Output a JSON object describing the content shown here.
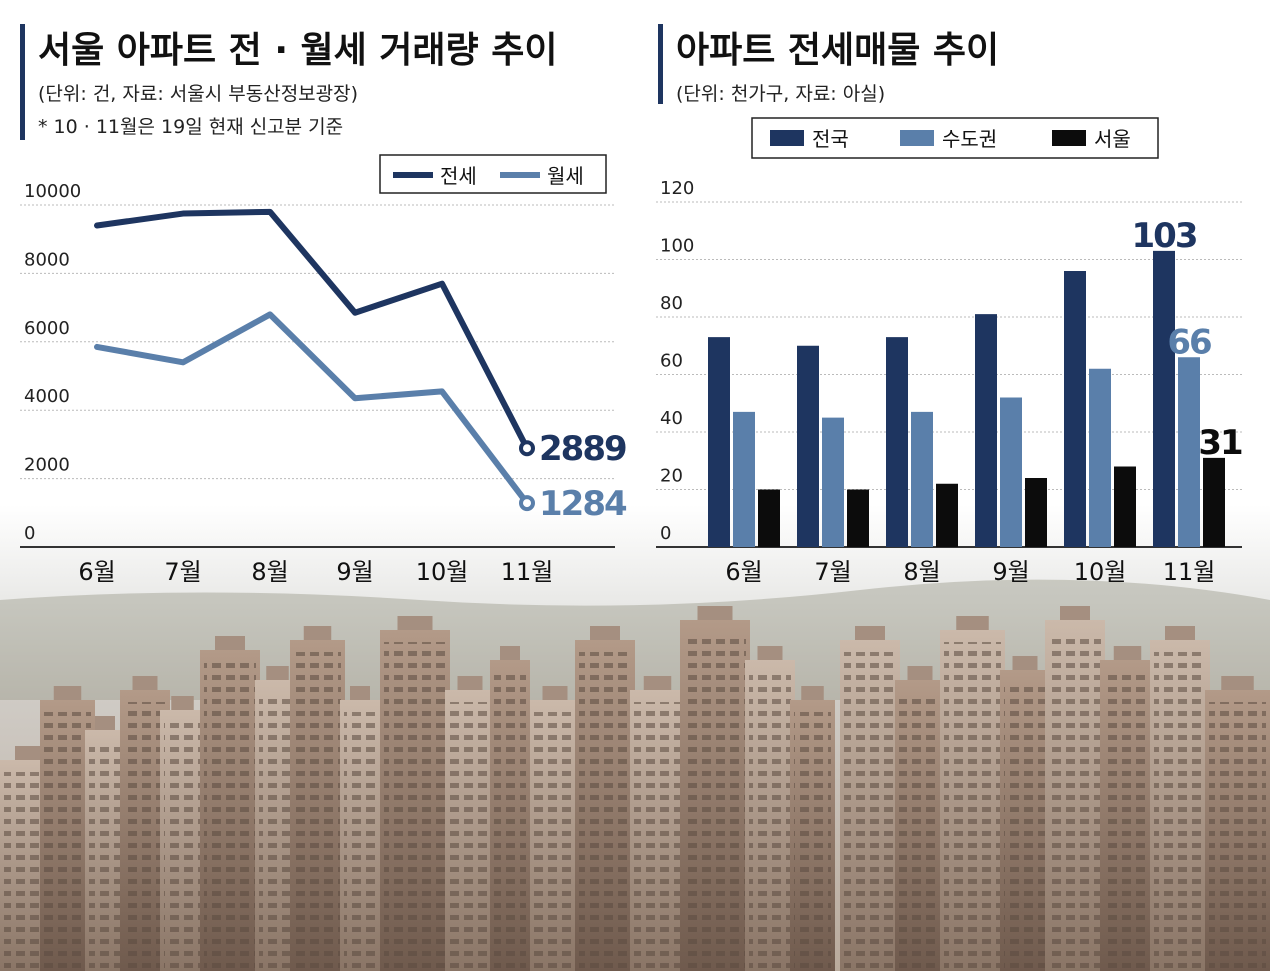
{
  "left": {
    "title": "서울 아파트 전 · 월세 거래량 추이",
    "subtitle": "(단위: 건, 자료: 서울시 부동산정보광장)",
    "note": "* 10 · 11월은 19일 현재 신고분 기준"
  },
  "right": {
    "title": "아파트 전세매물 추이",
    "subtitle": "(단위: 천가구, 자료: 아실)"
  },
  "colors": {
    "dark_navy": "#1e3560",
    "steel_blue": "#5a7faa",
    "black": "#0c0c0c"
  },
  "chart_data": [
    {
      "type": "line",
      "categories": [
        "6월",
        "7월",
        "8월",
        "9월",
        "10월",
        "11월"
      ],
      "series": [
        {
          "name": "전세",
          "values": [
            9400,
            9750,
            9800,
            6850,
            7700,
            2889
          ]
        },
        {
          "name": "월세",
          "values": [
            5850,
            5400,
            6800,
            4350,
            4550,
            1284
          ]
        }
      ],
      "y_ticks": [
        "0",
        "2000",
        "4000",
        "6000",
        "8000",
        "10000"
      ],
      "end_labels": [
        "2889",
        "1284"
      ],
      "ylim": [
        0,
        10000
      ],
      "grid": true,
      "legend": "top-right"
    },
    {
      "type": "bar",
      "categories": [
        "6월",
        "7월",
        "8월",
        "9월",
        "10월",
        "11월"
      ],
      "series": [
        {
          "name": "전국",
          "values": [
            73,
            70,
            73,
            81,
            96,
            103
          ]
        },
        {
          "name": "수도권",
          "values": [
            47,
            45,
            47,
            52,
            62,
            66
          ]
        },
        {
          "name": "서울",
          "values": [
            20,
            20,
            22,
            24,
            28,
            31
          ]
        }
      ],
      "y_ticks": [
        "0",
        "20",
        "40",
        "60",
        "80",
        "100",
        "120"
      ],
      "data_labels": [
        "103",
        "66",
        "31"
      ],
      "ylim": [
        0,
        120
      ],
      "grid": true,
      "legend": "top"
    }
  ]
}
